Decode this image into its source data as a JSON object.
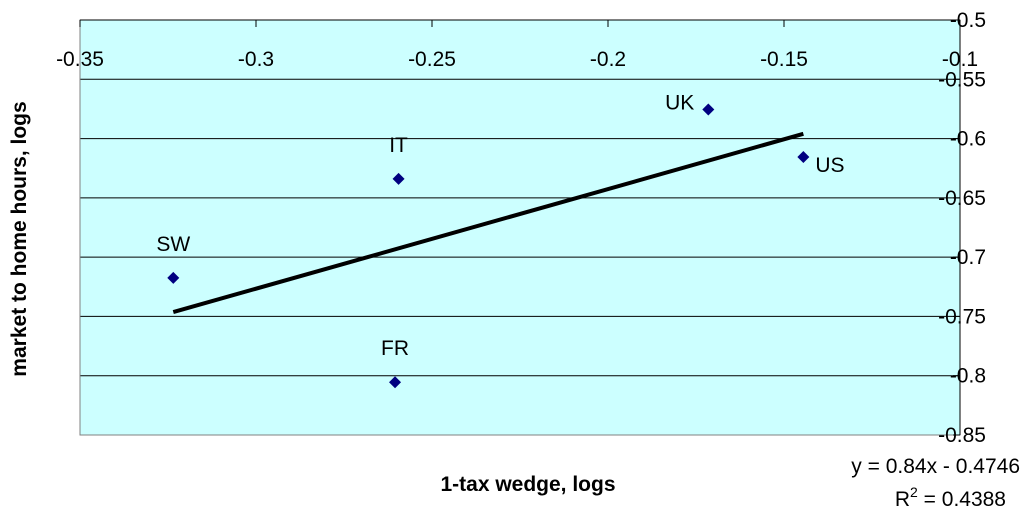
{
  "chart_data": {
    "type": "scatter",
    "xlabel": "1-tax wedge, logs",
    "ylabel": "market to home hours, logs",
    "xlim": [
      -0.35,
      -0.1
    ],
    "ylim": [
      -0.85,
      -0.5
    ],
    "x_ticks": [
      -0.35,
      -0.3,
      -0.25,
      -0.2,
      -0.15,
      -0.1
    ],
    "x_tick_labels": [
      "-0.35",
      "-0.3",
      "-0.25",
      "-0.2",
      "-0.15",
      "-0.1"
    ],
    "y_ticks": [
      -0.5,
      -0.55,
      -0.6,
      -0.65,
      -0.7,
      -0.75,
      -0.8,
      -0.85
    ],
    "y_tick_labels": [
      "-0.5",
      "-0.55",
      "-0.6",
      "-0.65",
      "-0.7",
      "-0.75",
      "-0.8",
      "-0.85"
    ],
    "x_axis_position": "top",
    "y_axis_position": "right",
    "grid": "horizontal",
    "background_color": "#ccffff",
    "marker_color": "#000080",
    "trendline_color": "#000000",
    "points": [
      {
        "label": "SW",
        "x": -0.3235,
        "y": -0.7175
      },
      {
        "label": "FR",
        "x": -0.2605,
        "y": -0.8055
      },
      {
        "label": "IT",
        "x": -0.2595,
        "y": -0.634
      },
      {
        "label": "UK",
        "x": -0.1715,
        "y": -0.5755
      },
      {
        "label": "US",
        "x": -0.1445,
        "y": -0.6155
      }
    ],
    "trendline": {
      "x_range": [
        -0.3235,
        -0.1445
      ],
      "slope": 0.84,
      "intercept": -0.4746,
      "equation": "y = 0.84x - 0.4746",
      "r2_prefix": "R",
      "r2_sup": "2",
      "r2_value": " = 0.4388"
    }
  }
}
